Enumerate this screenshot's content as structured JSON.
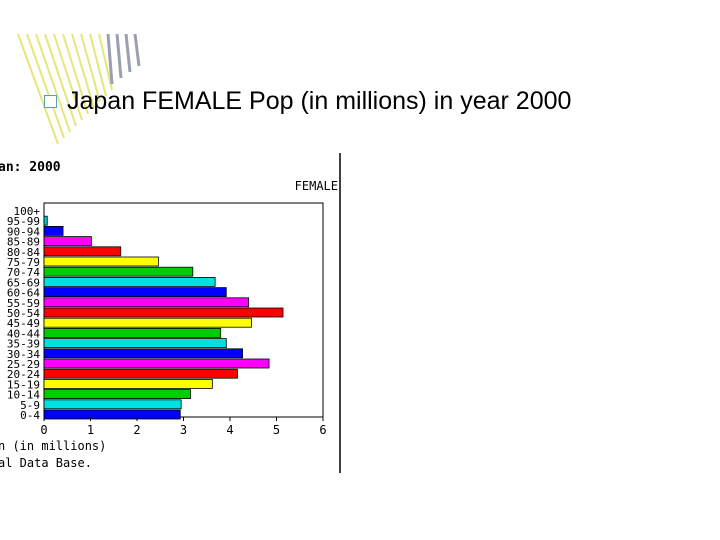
{
  "slide": {
    "title": "Japan FEMALE Pop (in millions) in year 2000"
  },
  "chart_header": {
    "country_year": "an: 2000",
    "panel_label": "FEMALE",
    "footer_line1": "n (in millions)",
    "footer_line2": "al Data Base."
  },
  "colors": {
    "stripe": "#e6e67a",
    "stripe_dark": "#9aa0b0",
    "bullet_border": "#5aa0b0",
    "chart_right_border": "#000000"
  },
  "chart_data": {
    "type": "bar",
    "orientation": "horizontal",
    "title": "",
    "xlabel": "",
    "ylabel": "",
    "xlim": [
      0,
      6
    ],
    "x_ticks": [
      "0",
      "1",
      "2",
      "3",
      "4",
      "5",
      "6"
    ],
    "categories": [
      "100+",
      "95-99",
      "90-94",
      "85-89",
      "80-84",
      "75-79",
      "70-74",
      "65-69",
      "60-64",
      "55-59",
      "50-54",
      "45-49",
      "40-44",
      "35-39",
      "30-34",
      "25-29",
      "20-24",
      "15-19",
      "10-14",
      "5-9",
      "0-4"
    ],
    "category_labels": [
      "100+",
      "95-99",
      "90-94",
      "85-89",
      "80-84",
      "75-79",
      "70-74",
      "65-69",
      "60-64",
      "55-59",
      "50-54",
      "45-49",
      "40-44",
      "35-39",
      "30-34",
      "25-29",
      "20-24",
      "15-19",
      "10-14",
      "5-9",
      "0-4"
    ],
    "values": [
      0.0,
      0.07,
      0.41,
      1.02,
      1.65,
      2.46,
      3.2,
      3.68,
      3.92,
      4.4,
      5.14,
      4.46,
      3.8,
      3.92,
      4.27,
      4.84,
      4.16,
      3.62,
      3.15,
      2.95,
      2.93
    ],
    "bar_colors": [
      "#00c0c0",
      "#00c8c8",
      "#0000ff",
      "#ff00ff",
      "#ff0000",
      "#ffff00",
      "#00cc00",
      "#00e0e0",
      "#0000ff",
      "#ff00ff",
      "#ff0000",
      "#ffff00",
      "#00cc00",
      "#00e0e0",
      "#0000ff",
      "#ff00ff",
      "#ff0000",
      "#ffff00",
      "#00cc00",
      "#00e0e0",
      "#0000ff"
    ]
  }
}
